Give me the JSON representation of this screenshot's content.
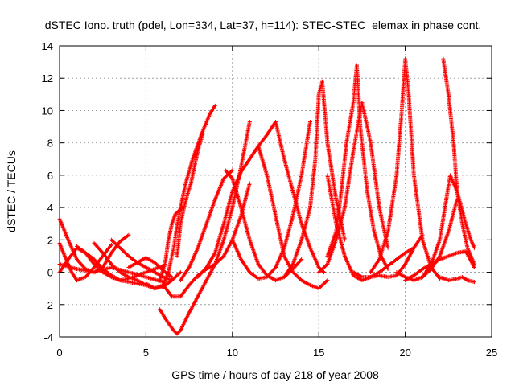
{
  "chart_data": {
    "type": "scatter",
    "title": "dSTEC Iono. truth (pdel, Lon=334, Lat=37, h=114): STEC-STEC_elemax in phase cont.",
    "xlabel": "GPS time / hours of day 218 of year 2008",
    "ylabel": "dSTEC  / TECUs",
    "xlim": [
      0,
      25
    ],
    "ylim": [
      -4,
      14
    ],
    "x_ticks": [
      0,
      5,
      10,
      15,
      20,
      25
    ],
    "y_ticks": [
      -4,
      -2,
      0,
      2,
      4,
      6,
      8,
      10,
      12,
      14
    ],
    "x_tick_labels": [
      "0",
      "5",
      "10",
      "15",
      "20",
      "25"
    ],
    "y_tick_labels": [
      "-4",
      "-2",
      "0",
      "2",
      "4",
      "6",
      "8",
      "10",
      "12",
      "14"
    ],
    "grid": true,
    "legend": "none",
    "marker": "plus",
    "color": "#ff0000",
    "series": [
      {
        "x": [
          0.0,
          0.5,
          1.0,
          1.5,
          2.0,
          2.5,
          3.0,
          3.5,
          4.0
        ],
        "values": [
          3.3,
          2.0,
          0.8,
          0.2,
          0.0,
          0.3,
          1.2,
          1.9,
          2.3
        ]
      },
      {
        "x": [
          0.0,
          0.3,
          0.7,
          1.0,
          1.5,
          2.0,
          2.5,
          3.0
        ],
        "values": [
          1.8,
          1.0,
          0.0,
          -0.5,
          -0.3,
          0.3,
          1.0,
          1.7
        ]
      },
      {
        "x": [
          0.0,
          0.5,
          1.0,
          1.5,
          2.0,
          2.5,
          3.0,
          3.5,
          4.0,
          4.5,
          5.0
        ],
        "values": [
          0.0,
          0.8,
          1.5,
          1.2,
          0.5,
          0.0,
          -0.3,
          -0.5,
          -0.6,
          -0.7,
          -0.8
        ]
      },
      {
        "x": [
          0.0,
          1.0,
          2.0,
          3.0,
          4.0,
          5.0,
          6.0
        ],
        "values": [
          0.5,
          0.2,
          0.0,
          0.3,
          0.0,
          -0.3,
          -0.6
        ]
      },
      {
        "x": [
          1.0,
          1.5,
          2.0,
          2.5,
          3.0,
          3.5,
          4.0,
          4.5,
          5.0,
          5.5,
          6.0
        ],
        "values": [
          1.6,
          1.2,
          0.8,
          0.2,
          -0.2,
          -0.5,
          -0.4,
          -0.2,
          0.0,
          0.2,
          0.4
        ]
      },
      {
        "x": [
          2.0,
          2.5,
          3.0,
          3.5,
          4.0,
          4.5,
          5.0,
          5.5,
          6.0,
          6.5,
          7.0
        ],
        "values": [
          1.8,
          1.2,
          0.5,
          0.0,
          -0.3,
          -0.5,
          -0.8,
          -1.0,
          -0.9,
          -0.5,
          0.0
        ]
      },
      {
        "x": [
          3.0,
          3.5,
          4.0,
          4.5,
          5.0,
          5.5,
          6.0,
          6.5
        ],
        "values": [
          2.0,
          1.5,
          1.0,
          0.6,
          0.3,
          0.0,
          -0.3,
          -0.5
        ]
      },
      {
        "x": [
          4.0,
          4.5,
          5.0,
          5.5,
          6.0,
          6.5
        ],
        "values": [
          0.3,
          0.6,
          0.9,
          0.6,
          0.1,
          -0.3
        ]
      },
      {
        "x": [
          5.0,
          5.5,
          6.0,
          6.3,
          6.6,
          6.9,
          7.3,
          7.7,
          8.2,
          8.7,
          9.0
        ],
        "values": [
          -0.7,
          -1.0,
          -0.8,
          0.0,
          1.5,
          3.5,
          5.5,
          7.0,
          8.5,
          9.8,
          10.3
        ]
      },
      {
        "x": [
          6.8,
          7.0,
          7.2,
          7.4,
          7.6,
          7.8,
          8.0,
          8.3
        ],
        "values": [
          1.0,
          3.0,
          4.0,
          4.8,
          5.5,
          6.5,
          7.5,
          8.6
        ]
      },
      {
        "x": [
          5.8,
          6.1,
          6.3,
          6.5,
          6.7,
          6.9,
          7.1
        ],
        "values": [
          -0.5,
          0.5,
          2.0,
          3.0,
          3.6,
          3.8,
          4.0
        ]
      },
      {
        "x": [
          5.8,
          6.2,
          6.6,
          6.8,
          7.0,
          7.5,
          8.0,
          8.5,
          9.0,
          9.5,
          10.0,
          10.5,
          11.0
        ],
        "values": [
          -2.3,
          -3.0,
          -3.6,
          -3.8,
          -3.6,
          -2.5,
          -1.5,
          -0.5,
          0.5,
          2.0,
          4.0,
          6.5,
          9.3
        ]
      },
      {
        "x": [
          6.0,
          6.5,
          7.0,
          7.5,
          8.0,
          8.5,
          9.0,
          9.5,
          10.0,
          10.5,
          11.0
        ],
        "values": [
          -0.8,
          -1.5,
          -1.5,
          -0.8,
          -0.2,
          0.2,
          0.5,
          1.0,
          2.0,
          3.5,
          5.5
        ]
      },
      {
        "x": [
          7.0,
          7.5,
          8.0,
          8.5,
          9.0,
          9.5,
          10.0
        ],
        "values": [
          -0.5,
          0.3,
          1.5,
          3.0,
          4.5,
          5.8,
          6.3
        ]
      },
      {
        "x": [
          8.0,
          8.5,
          9.0,
          9.5,
          10.0,
          10.5,
          11.0,
          11.5,
          12.0,
          12.5
        ],
        "values": [
          -0.3,
          0.3,
          1.2,
          3.0,
          5.0,
          6.2,
          7.0,
          7.8,
          8.5,
          9.3
        ]
      },
      {
        "x": [
          9.6,
          10.0,
          10.5,
          11.0,
          11.5,
          12.0,
          12.5,
          13.0,
          13.5,
          14.0
        ],
        "values": [
          6.3,
          5.8,
          4.0,
          2.0,
          0.5,
          -0.2,
          -0.5,
          -0.3,
          0.2,
          0.8
        ]
      },
      {
        "x": [
          10.0,
          10.5,
          11.0,
          11.5,
          12.0,
          12.5,
          13.0,
          13.5,
          14.0,
          14.5
        ],
        "values": [
          2.0,
          0.8,
          0.0,
          -0.4,
          -0.3,
          0.3,
          1.5,
          3.5,
          6.0,
          9.3
        ]
      },
      {
        "x": [
          11.5,
          12.0,
          12.5,
          13.0,
          13.5,
          14.0,
          14.5,
          15.0,
          15.5
        ],
        "values": [
          7.8,
          6.0,
          3.5,
          1.0,
          0.0,
          -0.5,
          -0.8,
          -1.0,
          -0.5
        ]
      },
      {
        "x": [
          12.5,
          13.0,
          13.5,
          14.0,
          14.5,
          14.8,
          15.0,
          15.3
        ],
        "values": [
          9.3,
          7.0,
          5.0,
          3.0,
          1.5,
          0.8,
          0.3,
          0.0
        ]
      },
      {
        "x": [
          13.0,
          13.5,
          14.0,
          14.5,
          14.8,
          15.0,
          15.2,
          15.5,
          16.0,
          16.5
        ],
        "values": [
          -0.3,
          0.5,
          2.0,
          4.0,
          7.0,
          11.0,
          11.8,
          8.0,
          4.5,
          2.0
        ]
      },
      {
        "x": [
          15.0,
          15.5,
          16.0,
          16.5,
          17.0,
          17.5,
          18.0,
          18.5,
          19.0
        ],
        "values": [
          0.0,
          0.5,
          2.0,
          4.0,
          7.5,
          10.5,
          8.0,
          4.0,
          1.5
        ]
      },
      {
        "x": [
          15.5,
          16.0,
          16.5,
          17.0,
          17.5,
          18.0,
          18.5,
          19.0,
          19.5,
          20.0,
          20.5
        ],
        "values": [
          6.0,
          3.0,
          1.0,
          -0.2,
          -0.5,
          -0.3,
          0.0,
          0.4,
          0.8,
          1.2,
          1.5
        ]
      },
      {
        "x": [
          15.5,
          16.0,
          16.3,
          16.6,
          17.0,
          17.2,
          17.4,
          17.8,
          18.2,
          18.6,
          19.0
        ],
        "values": [
          1.0,
          2.5,
          5.0,
          8.0,
          10.5,
          12.8,
          9.0,
          5.0,
          2.5,
          1.0,
          0.2
        ]
      },
      {
        "x": [
          17.0,
          17.5,
          18.0,
          18.5,
          19.0,
          19.5,
          20.0,
          20.5,
          21.0
        ],
        "values": [
          0.0,
          -0.3,
          -0.3,
          -0.2,
          -0.3,
          -0.2,
          0.5,
          1.5,
          2.3
        ]
      },
      {
        "x": [
          18.0,
          18.5,
          19.0,
          19.5,
          19.8,
          20.0,
          20.2,
          20.5,
          21.0,
          21.5,
          22.0
        ],
        "values": [
          0.0,
          0.8,
          2.5,
          6.0,
          10.0,
          13.2,
          11.0,
          6.0,
          2.0,
          0.3,
          -0.4
        ]
      },
      {
        "x": [
          19.5,
          20.0,
          20.5,
          21.0,
          21.5,
          22.0,
          22.5,
          23.0
        ],
        "values": [
          0.0,
          -0.3,
          -0.5,
          -0.3,
          0.2,
          1.0,
          2.5,
          4.5
        ]
      },
      {
        "x": [
          20.0,
          20.5,
          21.0,
          21.5,
          22.0,
          22.5,
          23.0,
          23.5,
          24.0
        ],
        "values": [
          -0.5,
          -0.2,
          0.2,
          0.5,
          0.8,
          1.0,
          1.2,
          1.3,
          0.3
        ]
      },
      {
        "x": [
          21.0,
          21.5,
          22.0,
          22.3,
          22.6,
          23.0,
          23.5,
          23.8,
          24.0
        ],
        "values": [
          -0.3,
          0.5,
          2.0,
          4.0,
          6.0,
          5.0,
          3.0,
          2.0,
          1.5
        ]
      },
      {
        "x": [
          22.2,
          22.5,
          22.8,
          23.0,
          23.3,
          23.6,
          24.0
        ],
        "values": [
          13.2,
          11.0,
          8.0,
          5.0,
          3.0,
          1.5,
          0.5
        ]
      },
      {
        "x": [
          22.0,
          22.5,
          23.0,
          23.3,
          23.6,
          24.0
        ],
        "values": [
          -0.3,
          -0.5,
          -0.4,
          -0.3,
          -0.5,
          -0.6
        ]
      }
    ]
  }
}
